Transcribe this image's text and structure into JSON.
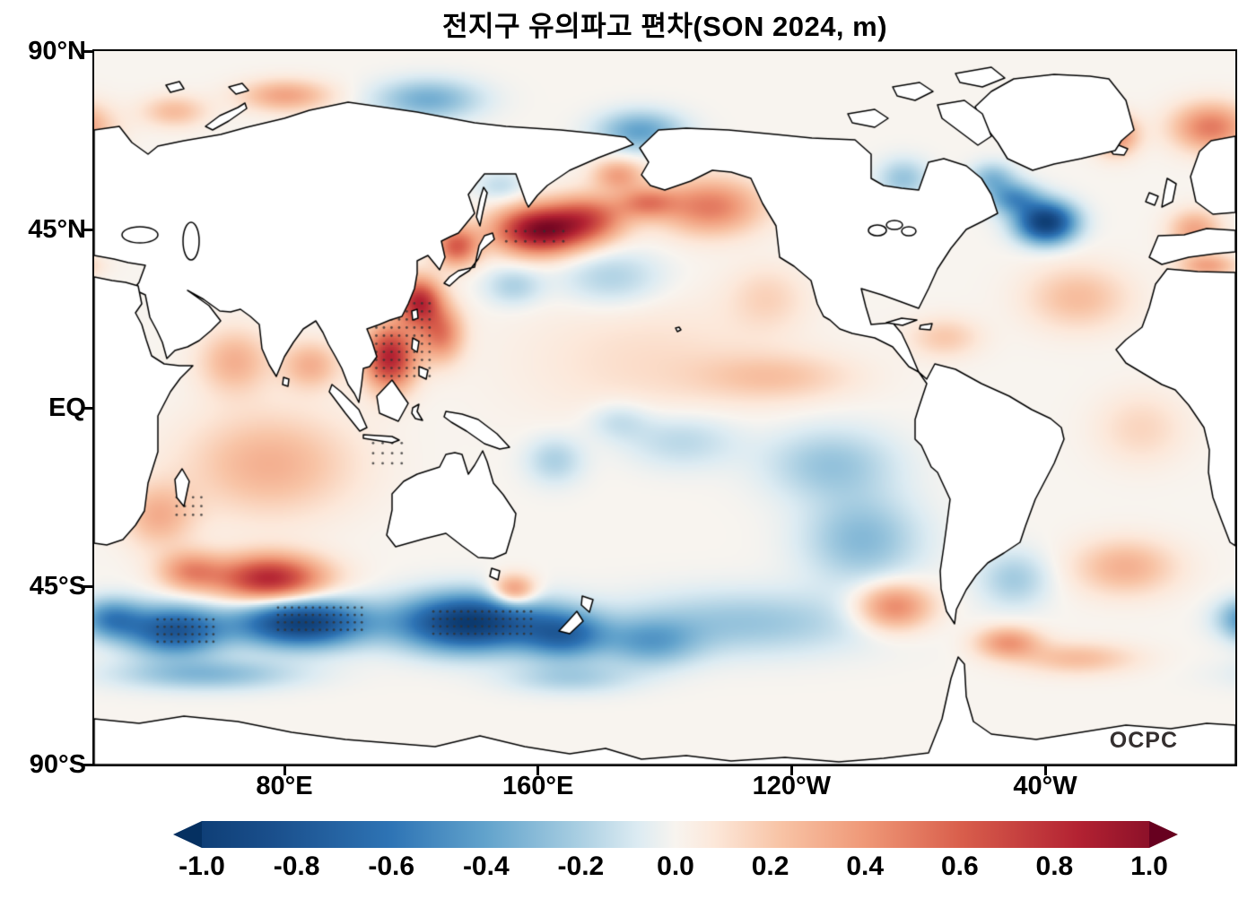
{
  "title": "전지구 유의파고 편차(SON 2024, m)",
  "watermark": "OCPC",
  "axes": {
    "lat_ticks": [
      {
        "label": "90°N",
        "lat": 90
      },
      {
        "label": "45°N",
        "lat": 45
      },
      {
        "label": "EQ",
        "lat": 0
      },
      {
        "label": "45°S",
        "lat": -45
      },
      {
        "label": "90°S",
        "lat": -90
      }
    ],
    "lon_ticks": [
      {
        "label": "80°E",
        "lon": 80
      },
      {
        "label": "160°E",
        "lon": 160
      },
      {
        "label": "120°W",
        "lon": 240
      },
      {
        "label": "40°W",
        "lon": 320
      }
    ]
  },
  "colorbar": {
    "ticks": [
      "-1.0",
      "-0.8",
      "-0.6",
      "-0.4",
      "-0.2",
      "0.0",
      "0.2",
      "0.4",
      "0.6",
      "0.8",
      "1.0"
    ],
    "min": -1.0,
    "max": 1.0,
    "colormap": "RdBu_r",
    "under_color": "#053061",
    "over_color": "#67001f",
    "stops": [
      {
        "v": -1.15,
        "c": "#053061"
      },
      {
        "v": -0.85,
        "c": "#1a4f8c"
      },
      {
        "v": -0.6,
        "c": "#2e74b5"
      },
      {
        "v": -0.4,
        "c": "#62a3cc"
      },
      {
        "v": -0.22,
        "c": "#a3cbe0"
      },
      {
        "v": -0.08,
        "c": "#dcebf2"
      },
      {
        "v": 0.0,
        "c": "#f8f4ef"
      },
      {
        "v": 0.08,
        "c": "#fce8da"
      },
      {
        "v": 0.22,
        "c": "#f8c4a6"
      },
      {
        "v": 0.4,
        "c": "#ef9877"
      },
      {
        "v": 0.6,
        "c": "#d95f4c"
      },
      {
        "v": 0.85,
        "c": "#b32232"
      },
      {
        "v": 1.15,
        "c": "#67001f"
      }
    ]
  },
  "chart_data": {
    "type": "heatmap",
    "title": "전지구 유의파고 편차(SON 2024, m)",
    "units": "m",
    "season": "SON 2024",
    "projection": "equirectangular",
    "lon_range": [
      20,
      380
    ],
    "lat_range": [
      -90,
      90
    ],
    "value_range": [
      -1.0,
      1.0
    ],
    "anomaly_features": [
      {
        "name": "nw-pacific-strong-positive",
        "lon": 160,
        "lat": 45,
        "rlon": 14,
        "rlat": 6,
        "value": 1.0
      },
      {
        "name": "nw-pacific-positive-ext",
        "lon": 176,
        "lat": 48,
        "rlon": 12,
        "rlat": 6,
        "value": 0.55
      },
      {
        "name": "japan-sea-positive",
        "lon": 134,
        "lat": 41,
        "rlon": 7,
        "rlat": 5,
        "value": 0.6
      },
      {
        "name": "east-china-sea-positive",
        "lon": 122,
        "lat": 27,
        "rlon": 7,
        "rlat": 6,
        "value": 0.8
      },
      {
        "name": "south-china-sea-positive",
        "lon": 113,
        "lat": 13,
        "rlon": 8,
        "rlat": 8,
        "value": 0.85
      },
      {
        "name": "philippine-sea-positive",
        "lon": 129,
        "lat": 19,
        "rlon": 7,
        "rlat": 7,
        "value": 0.5
      },
      {
        "name": "bay-of-bengal-positive",
        "lon": 88,
        "lat": 11,
        "rlon": 9,
        "rlat": 6,
        "value": 0.3
      },
      {
        "name": "arabian-sea-positive",
        "lon": 64,
        "lat": 12,
        "rlon": 11,
        "rlat": 8,
        "value": 0.3
      },
      {
        "name": "indian-ocean-broad-positive",
        "lon": 75,
        "lat": -14,
        "rlon": 26,
        "rlat": 13,
        "value": 0.3
      },
      {
        "name": "sw-indian-positive",
        "lon": 40,
        "lat": -27,
        "rlon": 11,
        "rlat": 8,
        "value": 0.3
      },
      {
        "name": "south-indian-strong-positive",
        "lon": 75,
        "lat": -43,
        "rlon": 17,
        "rlat": 6,
        "value": 0.85
      },
      {
        "name": "south-indian-west-positive",
        "lon": 50,
        "lat": -41,
        "rlon": 10,
        "rlat": 5,
        "value": 0.4
      },
      {
        "name": "tasman-south-positive",
        "lon": 152,
        "lat": -46,
        "rlon": 7,
        "rlat": 4,
        "value": 0.5
      },
      {
        "name": "gulf-of-alaska-positive",
        "lon": 214,
        "lat": 51,
        "rlon": 16,
        "rlat": 7,
        "value": 0.5
      },
      {
        "name": "aleutian-positive",
        "lon": 194,
        "lat": 52,
        "rlon": 9,
        "rlat": 4,
        "value": 0.4
      },
      {
        "name": "bering-positive",
        "lon": 185,
        "lat": 59,
        "rlon": 8,
        "rlat": 4,
        "value": 0.35
      },
      {
        "name": "east-pacific-itcz-positive",
        "lon": 235,
        "lat": 8,
        "rlon": 24,
        "rlat": 6,
        "value": 0.2
      },
      {
        "name": "california-light-positive",
        "lon": 232,
        "lat": 28,
        "rlon": 12,
        "rlat": 8,
        "value": 0.15
      },
      {
        "name": "caribbean-light-positive",
        "lon": 288,
        "lat": 18,
        "rlon": 11,
        "rlat": 5,
        "value": 0.2
      },
      {
        "name": "north-atlantic-subtropical-positive",
        "lon": 330,
        "lat": 28,
        "rlon": 16,
        "rlat": 8,
        "value": 0.25
      },
      {
        "name": "biscay-positive",
        "lon": 367,
        "lat": 45,
        "rlon": 8,
        "rlat": 5,
        "value": 0.35
      },
      {
        "name": "mediterranean-positive",
        "lon": 371,
        "lat": 36,
        "rlon": 9,
        "rlat": 3,
        "value": 0.35
      },
      {
        "name": "norwegian-sea-positive",
        "lon": 372,
        "lat": 71,
        "rlon": 12,
        "rlat": 6,
        "value": 0.5
      },
      {
        "name": "greenland-east-positive",
        "lon": 342,
        "lat": 69,
        "rlon": 7,
        "rlat": 5,
        "value": 0.45
      },
      {
        "name": "kara-sea-positive",
        "lon": 80,
        "lat": 79,
        "rlon": 14,
        "rlat": 4,
        "value": 0.35
      },
      {
        "name": "barents-positive",
        "lon": 45,
        "lat": 75,
        "rlon": 10,
        "rlat": 4,
        "value": 0.25
      },
      {
        "name": "south-pacific-drake-west-positive",
        "lon": 272,
        "lat": -50,
        "rlon": 12,
        "rlat": 6,
        "value": 0.5
      },
      {
        "name": "scotia-sea-positive",
        "lon": 308,
        "lat": -59,
        "rlon": 10,
        "rlat": 4,
        "value": 0.4
      },
      {
        "name": "south-atlantic-positive",
        "lon": 345,
        "lat": -40,
        "rlon": 16,
        "rlat": 7,
        "value": 0.3
      },
      {
        "name": "antarctic-coast-right-positive",
        "lon": 330,
        "lat": -63,
        "rlon": 18,
        "rlat": 4,
        "value": 0.25
      },
      {
        "name": "north-pacific-broad-light-positive",
        "lon": 195,
        "lat": 12,
        "rlon": 40,
        "rlat": 16,
        "value": 0.12
      },
      {
        "name": "equatorial-atlantic-light-positive",
        "lon": 350,
        "lat": -5,
        "rlon": 14,
        "rlat": 9,
        "value": 0.15
      },
      {
        "name": "southern-ocean-negative-0",
        "lon": 25,
        "lat": -53,
        "rlon": 10,
        "rlat": 5,
        "value": -0.5
      },
      {
        "name": "southern-ocean-negative-1",
        "lon": 45,
        "lat": -56,
        "rlon": 15,
        "rlat": 6,
        "value": -0.8
      },
      {
        "name": "southern-ocean-negative-2",
        "lon": 85,
        "lat": -54,
        "rlon": 20,
        "rlat": 6,
        "value": -1.0
      },
      {
        "name": "southern-ocean-negative-3",
        "lon": 138,
        "lat": -54,
        "rlon": 22,
        "rlat": 7,
        "value": -1.05
      },
      {
        "name": "southern-ocean-negative-4",
        "lon": 168,
        "lat": -57,
        "rlon": 13,
        "rlat": 6,
        "value": -0.6
      },
      {
        "name": "southern-ocean-negative-5",
        "lon": 195,
        "lat": -59,
        "rlon": 15,
        "rlat": 6,
        "value": -0.35
      },
      {
        "name": "south-pacific-band-negative",
        "lon": 225,
        "lat": -54,
        "rlon": 40,
        "rlat": 8,
        "value": -0.25
      },
      {
        "name": "north-atlantic-strong-negative",
        "lon": 320,
        "lat": 47,
        "rlon": 9,
        "rlat": 5,
        "value": -1.0
      },
      {
        "name": "north-atlantic-negative-ext",
        "lon": 310,
        "lat": 53,
        "rlon": 8,
        "rlat": 4,
        "value": -0.45
      },
      {
        "name": "labrador-negative",
        "lon": 303,
        "lat": 58,
        "rlon": 7,
        "rlat": 4,
        "value": -0.3
      },
      {
        "name": "north-pacific-central-negative",
        "lon": 183,
        "lat": 33,
        "rlon": 16,
        "rlat": 7,
        "value": -0.2
      },
      {
        "name": "kuroshio-south-negative",
        "lon": 152,
        "lat": 31,
        "rlon": 9,
        "rlat": 5,
        "value": -0.2
      },
      {
        "name": "okhotsk-negative",
        "lon": 148,
        "lat": 56,
        "rlon": 8,
        "rlat": 4,
        "value": -0.15
      },
      {
        "name": "chukchi-negative",
        "lon": 192,
        "lat": 70,
        "rlon": 13,
        "rlat": 5,
        "value": -0.4
      },
      {
        "name": "laptev-negative",
        "lon": 125,
        "lat": 78,
        "rlon": 16,
        "rlat": 5,
        "value": -0.35
      },
      {
        "name": "equatorial-pacific-negative-1",
        "lon": 205,
        "lat": -8,
        "rlon": 18,
        "rlat": 7,
        "value": -0.18
      },
      {
        "name": "equatorial-pacific-negative-2",
        "lon": 252,
        "lat": -14,
        "rlon": 20,
        "rlat": 9,
        "value": -0.25
      },
      {
        "name": "se-pacific-negative",
        "lon": 262,
        "lat": -33,
        "rlon": 18,
        "rlat": 11,
        "value": -0.3
      },
      {
        "name": "argentine-basin-negative",
        "lon": 310,
        "lat": -43,
        "rlon": 11,
        "rlat": 7,
        "value": -0.22
      },
      {
        "name": "coral-sea-negative",
        "lon": 165,
        "lat": -13,
        "rlon": 9,
        "rlat": 6,
        "value": -0.2
      },
      {
        "name": "west-pacific-equatorial-negative",
        "lon": 185,
        "lat": -3,
        "rlon": 10,
        "rlat": 5,
        "value": -0.15
      },
      {
        "name": "antarctic-coast-left-negative",
        "lon": 55,
        "lat": -67,
        "rlon": 28,
        "rlat": 4,
        "value": -0.3
      },
      {
        "name": "ross-sea-negative",
        "lon": 170,
        "lat": -68,
        "rlon": 20,
        "rlat": 4,
        "value": -0.2
      },
      {
        "name": "hudson-bay-negative",
        "lon": 275,
        "lat": 58,
        "rlon": 8,
        "rlat": 5,
        "value": -0.25
      }
    ],
    "stipple_regions": [
      {
        "lon": [
          40,
          58
        ],
        "lat": [
          -59,
          -53
        ],
        "step": 2.2
      },
      {
        "lon": [
          78,
          106
        ],
        "lat": [
          -56,
          -50
        ],
        "step": 2.2
      },
      {
        "lon": [
          127,
          158
        ],
        "lat": [
          -57,
          -50
        ],
        "step": 2.2
      },
      {
        "lon": [
          150,
          168
        ],
        "lat": [
          42,
          47
        ],
        "step": 3.0
      },
      {
        "lon": [
          109,
          126
        ],
        "lat": [
          8,
          28
        ],
        "step": 2.4
      },
      {
        "lon": [
          20,
          27
        ],
        "lat": [
          -25,
          -17
        ],
        "step": 2.4
      },
      {
        "lon": [
          46,
          54
        ],
        "lat": [
          -27,
          -21
        ],
        "step": 2.6
      },
      {
        "lon": [
          108,
          118
        ],
        "lat": [
          -14,
          -8
        ],
        "step": 3.0
      }
    ]
  }
}
